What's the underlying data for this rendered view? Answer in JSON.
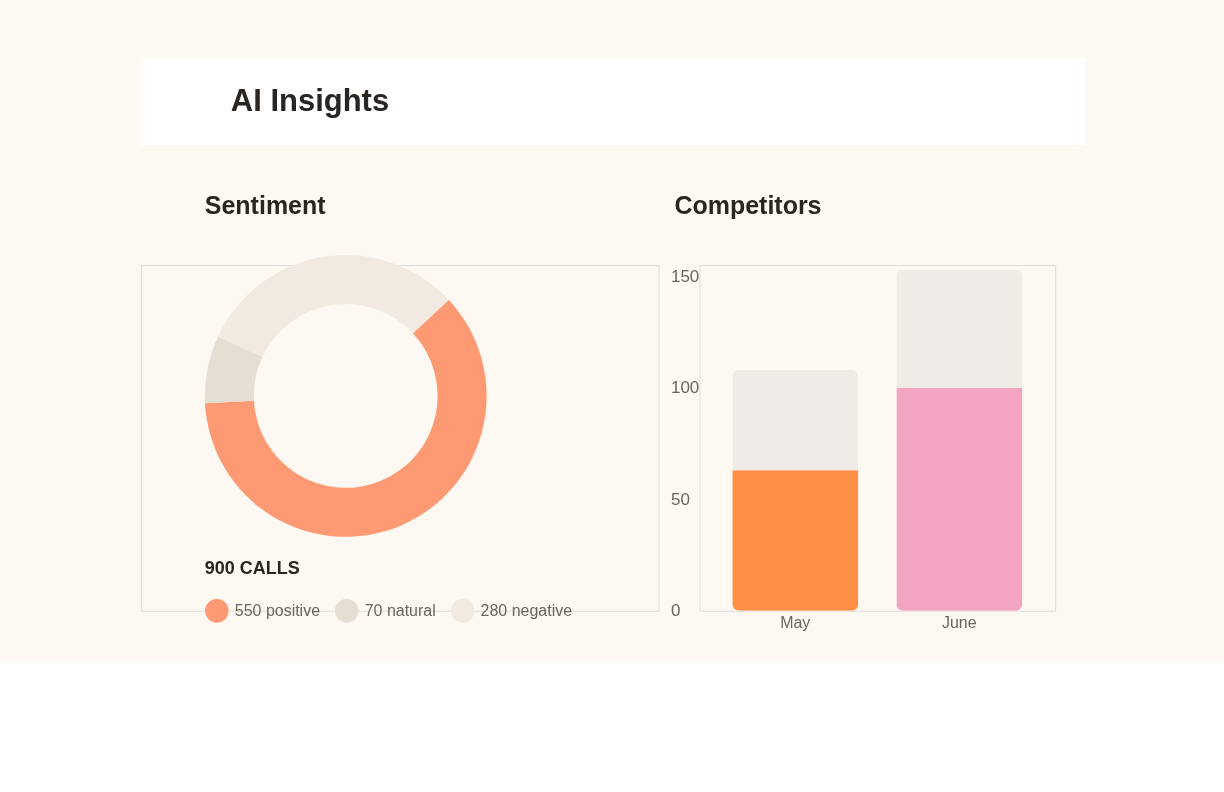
{
  "chart_data": [
    {
      "type": "other",
      "title": "AI Insights"
    },
    {
      "type": "donut",
      "title": "Sentiment",
      "categories": [
        "550 positive",
        "70 natural",
        "280 negative"
      ],
      "values": [
        550,
        70,
        280
      ],
      "colors": [
        "#fd9a74",
        "#e6ded3",
        "#f2eae1"
      ],
      "legend_title": "900 CALLS",
      "legend": "bottom"
    },
    {
      "type": "bar",
      "title": "Competitors",
      "categories": [
        "May",
        "June"
      ],
      "series": [
        {
          "values": [
            63,
            100
          ],
          "colors": [
            "#ff8f45",
            "#f3a4c2"
          ]
        },
        {
          "values": [
            45,
            53
          ],
          "color": "#efebe6"
        }
      ],
      "stacked": true,
      "ylim": [
        0,
        155
      ],
      "yticks": [
        0,
        50,
        100,
        150
      ],
      "grid": false
    }
  ]
}
